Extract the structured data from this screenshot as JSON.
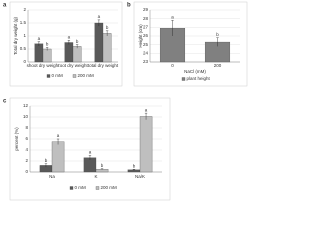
{
  "chart_data": [
    {
      "type": "bar",
      "panel": "a",
      "y_label": "Total dry weight (g)",
      "categories": [
        "shoot dry weight",
        "root dry weight",
        "total dry weight"
      ],
      "series": [
        {
          "name": "0 mM",
          "color": "#595959",
          "values": [
            0.7,
            0.75,
            1.5
          ],
          "errors": [
            0.08,
            0.08,
            0.12
          ],
          "letters": [
            "a",
            "a",
            "a"
          ]
        },
        {
          "name": "200 mM",
          "color": "#bfbfbf",
          "values": [
            0.5,
            0.6,
            1.1
          ],
          "errors": [
            0.06,
            0.07,
            0.1
          ],
          "letters": [
            "b",
            "b",
            "b"
          ]
        }
      ],
      "ylim": [
        0,
        2
      ],
      "yticks": [
        0,
        0.5,
        1,
        1.5,
        2
      ],
      "grid": true,
      "legend": "bottom"
    },
    {
      "type": "bar",
      "panel": "b",
      "y_label": "Height (cm)",
      "x_label": "NaCl (mM)",
      "categories": [
        "0",
        "200"
      ],
      "series": [
        {
          "name": "plant height",
          "color": "#808080",
          "values": [
            26.9,
            25.3
          ],
          "errors": [
            0.9,
            0.5
          ],
          "letters": [
            "a",
            "b"
          ]
        }
      ],
      "ylim": [
        23,
        29
      ],
      "yticks": [
        23,
        24,
        25,
        26,
        27,
        28,
        29
      ],
      "grid": true,
      "legend": "bottom"
    },
    {
      "type": "bar",
      "panel": "c",
      "y_label": "percent (%)",
      "categories": [
        "Na",
        "K",
        "Na/K"
      ],
      "series": [
        {
          "name": "0 mM",
          "color": "#595959",
          "values": [
            1.2,
            2.6,
            0.4
          ],
          "errors": [
            0.3,
            0.4,
            0.1
          ],
          "letters": [
            "b",
            "a",
            "b"
          ]
        },
        {
          "name": "200 mM",
          "color": "#bfbfbf",
          "values": [
            5.5,
            0.5,
            10.1
          ],
          "errors": [
            0.5,
            0.1,
            0.6
          ],
          "letters": [
            "a",
            "b",
            "a"
          ]
        }
      ],
      "ylim": [
        0,
        12
      ],
      "yticks": [
        0,
        2,
        4,
        6,
        8,
        10,
        12
      ],
      "grid": true,
      "legend": "bottom"
    }
  ]
}
